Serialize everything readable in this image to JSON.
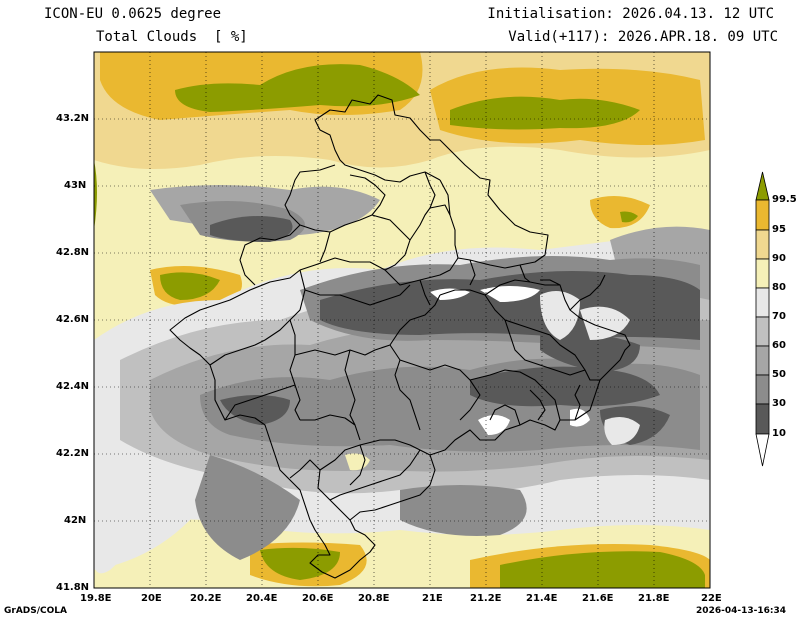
{
  "header": {
    "model": "ICON-EU 0.0625 degree",
    "variable": "Total Clouds  [ %]",
    "init": "Initialisation: 2026.04.13. 12 UTC",
    "valid": "Valid(+117): 2026.APR.18. 09 UTC"
  },
  "axes": {
    "x_ticks": [
      "19.8E",
      "20E",
      "20.2E",
      "20.4E",
      "20.6E",
      "20.8E",
      "21E",
      "21.2E",
      "21.4E",
      "21.6E",
      "21.8E",
      "22E"
    ],
    "y_ticks": [
      "43.2N",
      "43N",
      "42.8N",
      "42.6N",
      "42.4N",
      "42.2N",
      "42N",
      "41.8N"
    ],
    "lon_range": [
      19.8,
      22.0
    ],
    "lat_range": [
      41.8,
      43.4
    ]
  },
  "legend": {
    "levels": [
      "10",
      "30",
      "50",
      "60",
      "70",
      "80",
      "90",
      "95",
      "99.5"
    ],
    "colors": [
      "#ffffff",
      "#595959",
      "#8c8c8c",
      "#a6a6a6",
      "#c0c0c0",
      "#e8e8e8",
      "#f5f0b8",
      "#f0d890",
      "#eab830",
      "#8c9c00"
    ]
  },
  "footer": {
    "credit": "GrADS/COLA",
    "timestamp": "2026-04-13-16:34"
  }
}
